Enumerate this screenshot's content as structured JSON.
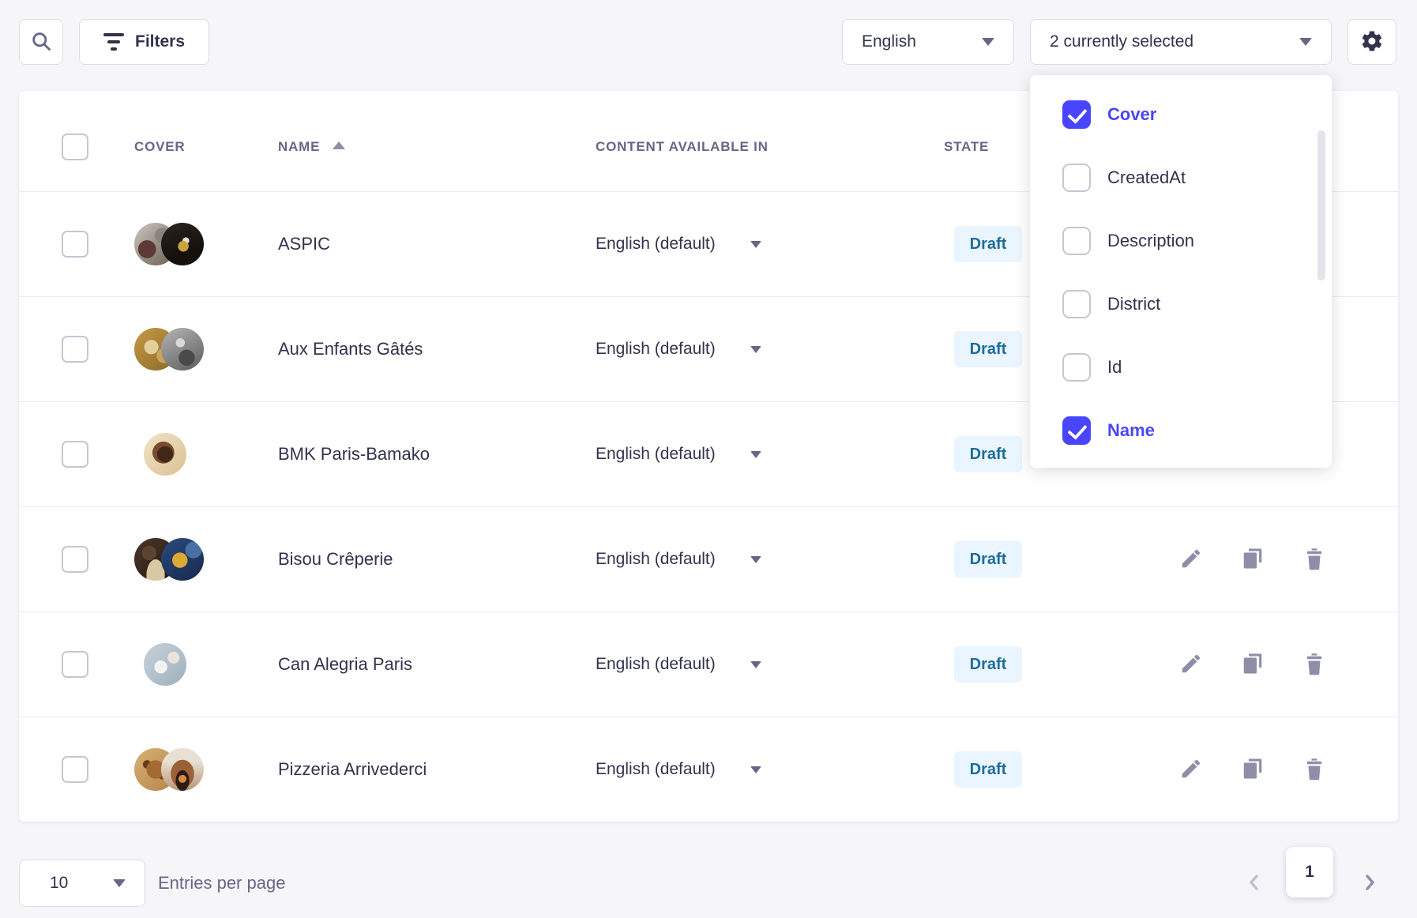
{
  "colors": {
    "background": "#f6f6f9",
    "primary": "#4945ff",
    "text_dark": "#32324d",
    "text_muted": "#666687",
    "icon_gray": "#8e8ea9",
    "border": "#dcdce4",
    "separator": "#eaeaef",
    "badge_bg": "#eaf5ff",
    "badge_text": "#1c6c9c"
  },
  "icons": {
    "search": "magnifier 🔍",
    "filter": "funnel bars",
    "settings": "gear ⚙",
    "caret_down": "▾",
    "sort_ascending": "▲",
    "edit": "pencil ✎",
    "duplicate": "overlapping squares ⧉",
    "delete": "trash 🗑",
    "chevron_left": "‹",
    "chevron_right": "›",
    "checkmark": "✓"
  },
  "toolbar": {
    "filters_label": "Filters",
    "locale_select_value": "English",
    "columns_select_value": "2 currently selected"
  },
  "columns_dropdown": {
    "items": [
      {
        "label": "Cover",
        "checked": true
      },
      {
        "label": "CreatedAt",
        "checked": false
      },
      {
        "label": "Description",
        "checked": false
      },
      {
        "label": "District",
        "checked": false
      },
      {
        "label": "Id",
        "checked": false
      },
      {
        "label": "Name",
        "checked": true
      }
    ]
  },
  "table": {
    "headers": {
      "cover": "COVER",
      "name": "NAME",
      "content_available_in": "CONTENT AVAILABLE IN",
      "state": "STATE"
    },
    "sorted_by": "NAME ascending",
    "rows": [
      {
        "name": "ASPIC",
        "locale": "English (default)",
        "state": "Draft",
        "covers": 2
      },
      {
        "name": "Aux Enfants Gâtés",
        "locale": "English (default)",
        "state": "Draft",
        "covers": 2
      },
      {
        "name": "BMK Paris-Bamako",
        "locale": "English (default)",
        "state": "Draft",
        "covers": 1
      },
      {
        "name": "Bisou Crêperie",
        "locale": "English (default)",
        "state": "Draft",
        "covers": 2
      },
      {
        "name": "Can Alegria Paris",
        "locale": "English (default)",
        "state": "Draft",
        "covers": 1
      },
      {
        "name": "Pizzeria Arrivederci",
        "locale": "English (default)",
        "state": "Draft",
        "covers": 2
      }
    ]
  },
  "footer": {
    "page_size": "10",
    "entries_label": "Entries per page",
    "current_page": "1"
  }
}
